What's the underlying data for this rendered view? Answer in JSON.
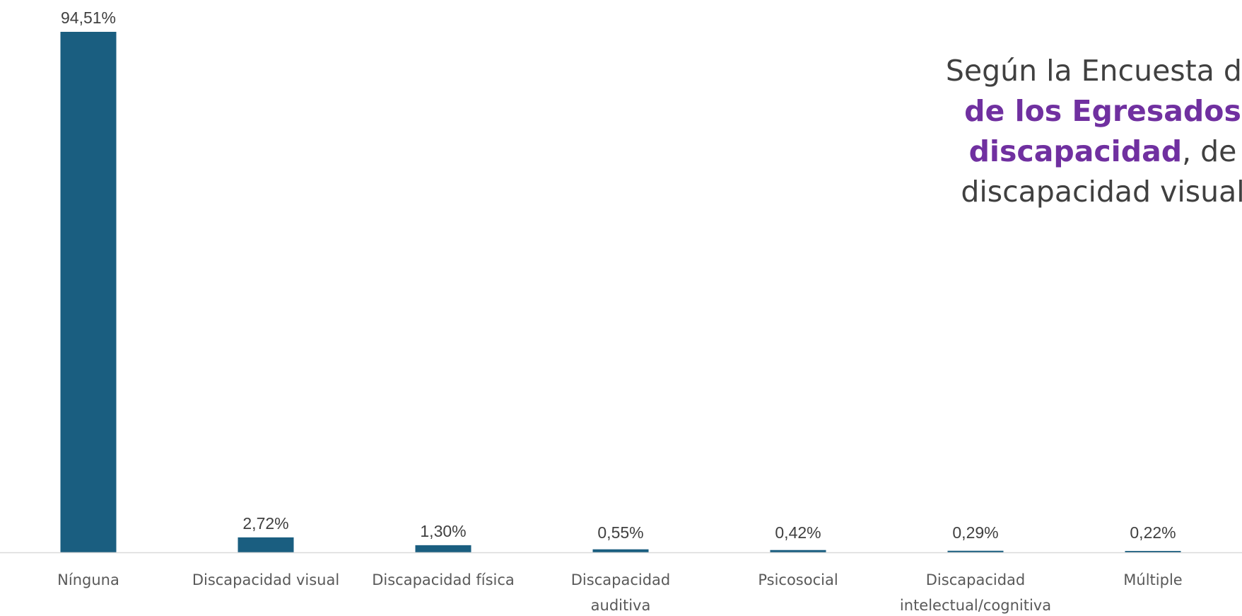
{
  "chart_data": {
    "type": "bar",
    "categories": [
      "Nínguna",
      "Discapacidad visual",
      "Discapacidad física",
      "Discapacidad auditiva",
      "Psicosocial",
      "Discapacidad intelectual/cognitiva",
      "Múltiple"
    ],
    "category_lines": [
      [
        "Nínguna"
      ],
      [
        "Discapacidad visual"
      ],
      [
        "Discapacidad física"
      ],
      [
        "Discapacidad",
        "auditiva"
      ],
      [
        "Psicosocial"
      ],
      [
        "Discapacidad",
        "intelectual/cognitiva"
      ],
      [
        "Múltiple"
      ]
    ],
    "values": [
      94.51,
      2.72,
      1.3,
      0.55,
      0.42,
      0.29,
      0.22
    ],
    "data_labels": [
      "94,51%",
      "2,72%",
      "1,30%",
      "0,55%",
      "0,42%",
      "0,29%",
      "0,22%"
    ],
    "ylim": [
      0,
      100
    ],
    "grid": false,
    "legend": "none",
    "bar_color": "#1a5e80",
    "axis_color": "#d9d9d9"
  },
  "callout": {
    "lines": [
      [
        {
          "text": "Según la Encuesta de ",
          "hl": false
        }
      ],
      [
        {
          "text": "de los Egresados",
          "hl": true
        }
      ],
      [
        {
          "text": "discapacidad",
          "hl": true
        },
        {
          "text": ", de",
          "hl": false
        }
      ],
      [
        {
          "text": "discapacidad visual",
          "hl": false
        }
      ]
    ],
    "highlight_color": "#7030a0"
  }
}
